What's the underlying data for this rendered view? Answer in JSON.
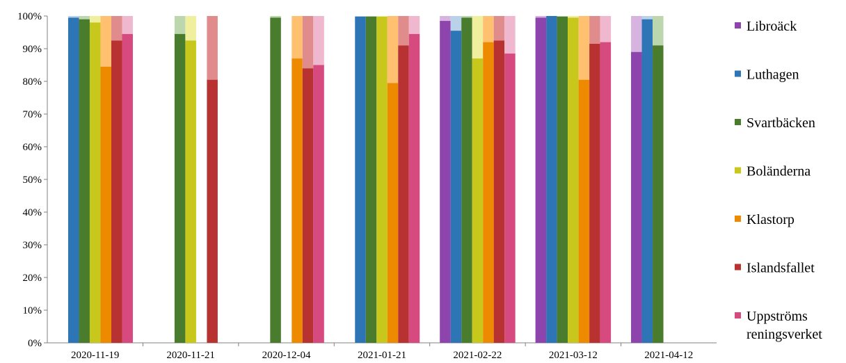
{
  "chart_data": {
    "type": "bar",
    "stacked_fraction": true,
    "title": "",
    "xlabel": "",
    "ylabel": "",
    "ylim": [
      0,
      1
    ],
    "y_ticks": [
      0,
      0.1,
      0.2,
      0.3,
      0.4,
      0.5,
      0.6,
      0.7,
      0.8,
      0.9,
      1.0
    ],
    "y_tick_labels": [
      "0%",
      "10%",
      "20%",
      "30%",
      "40%",
      "50%",
      "60%",
      "70%",
      "80%",
      "90%",
      "100%"
    ],
    "categories": [
      "2020-11-19",
      "2020-11-21",
      "2020-12-04",
      "2021-01-21",
      "2021-02-22",
      "2021-03-12",
      "2021-04-12"
    ],
    "grid": false,
    "legend_position": "right",
    "remainder_shown_as_lighter_shade": true,
    "series": [
      {
        "name": "Libroback",
        "label": "Libroback",
        "color": "#8e44ad",
        "light": "#d7b3e0",
        "values": [
          null,
          null,
          null,
          null,
          0.985,
          0.995,
          0.89
        ]
      },
      {
        "name": "Luthagen",
        "label": "Luthagen",
        "color": "#2e75b6",
        "light": "#b9d2ea",
        "values": [
          0.995,
          null,
          null,
          0.998,
          0.955,
          1.0,
          0.99
        ]
      },
      {
        "name": "Svartbacken",
        "label": "Svartbacken",
        "color": "#4a7c2e",
        "light": "#bcd6ad",
        "values": [
          0.99,
          0.945,
          0.995,
          0.998,
          0.995,
          0.998,
          0.91
        ]
      },
      {
        "name": "Bolanderna",
        "label": "Bolanderna",
        "color": "#c8c81c",
        "light": "#efef9e",
        "values": [
          0.98,
          0.925,
          null,
          0.998,
          0.87,
          0.995,
          null
        ]
      },
      {
        "name": "Klastorp",
        "label": "Klastorp",
        "color": "#ee8a00",
        "light": "#ffc070",
        "values": [
          0.845,
          null,
          0.87,
          0.795,
          0.92,
          0.805,
          null
        ]
      },
      {
        "name": "Islandsfallet",
        "label": "Islandsfallet",
        "color": "#b83232",
        "light": "#e08c8c",
        "values": [
          0.925,
          0.805,
          0.84,
          0.91,
          0.925,
          0.915,
          null
        ]
      },
      {
        "name": "Uppstroms reningsverket",
        "label": "Uppströms reningsverket",
        "color": "#d64a80",
        "light": "#f0b8cf",
        "values": [
          0.945,
          null,
          0.85,
          0.945,
          0.885,
          0.92,
          null
        ]
      }
    ],
    "legend_labels": [
      "Libroäck",
      "Luthagen",
      "Svartbäcken",
      "Boländerna",
      "Klastorp",
      "Islandsfallet",
      "Uppströms reningsverket"
    ]
  },
  "legend": {
    "entries": [
      {
        "lines": [
          "Libroäck"
        ]
      },
      {
        "lines": [
          "Luthagen"
        ]
      },
      {
        "lines": [
          "Svartbäcken"
        ]
      },
      {
        "lines": [
          "Boländerna"
        ]
      },
      {
        "lines": [
          "Klastorp"
        ]
      },
      {
        "lines": [
          "Islandsfallet"
        ]
      },
      {
        "lines": [
          "Uppströms",
          "reningsverket"
        ]
      }
    ]
  }
}
